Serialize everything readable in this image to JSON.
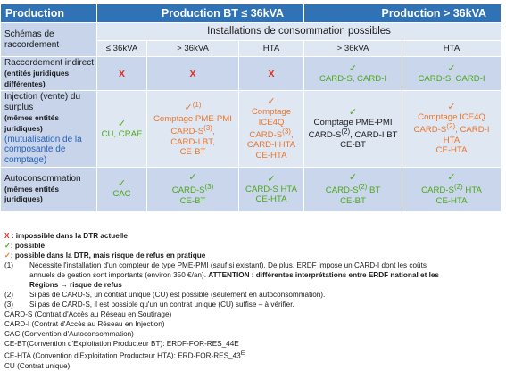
{
  "header": {
    "production": "Production",
    "bt": "Production BT ≤ 36kVA",
    "gt": "Production > 36kVA"
  },
  "row_schemas": {
    "label": "Schémas de raccordement",
    "installations": "Installations de consommation possibles",
    "cols": [
      "≤ 36kVA",
      "> 36kVA",
      "HTA",
      "> 36kVA",
      "HTA"
    ]
  },
  "row_indirect": {
    "label": "Raccordement indirect",
    "sub": "(entités juridiques différentes)",
    "cells": [
      "X",
      "X",
      "X",
      "CARD-S, CARD-I",
      "CARD-S, CARD-I"
    ]
  },
  "row_injection": {
    "label": "Injection (vente) du surplus",
    "sub": "(mêmes entités juridiques)",
    "sub2": "(mutualisation de la composante de comptage)",
    "c1": "CU, CRAE",
    "c2a": "Comptage PME-PMI",
    "c2b": "CARD-S",
    "c2c": "CARD-I BT,",
    "c2d": "CE-BT",
    "c3a": "Comptage",
    "c3b": "ICE4Q",
    "c3c": "CARD-S",
    "c3d": "CARD-I HTA",
    "c3e": "CE-HTA",
    "c4a": "Comptage PME-PMI",
    "c4b": "CARD-S",
    "c4c": "CARD-I BT",
    "c4d": "CE-BT",
    "c5a": "Comptage ICE4Q",
    "c5b": "CARD-S",
    "c5c": "CARD-I HTA",
    "c5d": "CE-HTA",
    "sup1": "(1)",
    "sup2": "(2)",
    "sup3": "(3)"
  },
  "row_auto": {
    "label": "Autoconsommation",
    "sub": "(mêmes entités juridiques)",
    "c1": "CAC",
    "c2a": "CARD-S",
    "c2b": "CE-BT",
    "c3a": "CARD-S HTA",
    "c3b": "CE-HTA",
    "c4a": "CARD-S",
    "c4b": "BT",
    "c4c": "CE-BT",
    "c5a": "CARD-S",
    "c5b": "HTA",
    "c5c": "CE-HTA",
    "sup3": "(3)",
    "sup2": "(2)"
  },
  "legend": {
    "x_mark": "X",
    "x_text": ": impossible dans la DTR actuelle",
    "check_text": ": possible",
    "orange_text": ": possible dans la DTR, mais risque de refus en pratique"
  },
  "notes": {
    "n1num": "(1)",
    "n1a": "Nécessite l'installation d'un compteur de type PME-PMI (sauf si existant). De plus, ERDF impose un CARD-I dont les coûts",
    "n1b": "annuels de gestion sont importants (environ 350 €/an).",
    "n1c": "ATTENTION : différentes interprétations entre ERDF national et les",
    "n1d": "Régions",
    "n1e": "→ risque de refus",
    "n2num": "(2)",
    "n2": "Si pas de CARD-S, un contrat unique (CU) est possible (seulement en autoconsommation).",
    "n3num": "(3)",
    "n3": "Si pas de CARD-S, il est possible qu'un un contrat unique (CU) suffise – à vérifier."
  },
  "defs": [
    "CARD-S (Contrat d'Accès au Réseau en Soutirage)",
    "CARD-I (Contrat d'Accès au Réseau en Injection)",
    "CAC (Convention d'Autoconsommation)",
    "CE-BT(Convention d'Exploitation Producteur BT): ERDF-FOR-RES_44E",
    "CE-HTA (Convention d'Exploitation Producteur HTA): ERD-FOR-RES_43",
    "CU (Contrat unique)"
  ],
  "defs_sup": "E",
  "check": "✓",
  "colors": {
    "header": "#2f73b6",
    "green": "#4ea71a",
    "orange": "#e8762d",
    "red": "#e42b1f"
  }
}
